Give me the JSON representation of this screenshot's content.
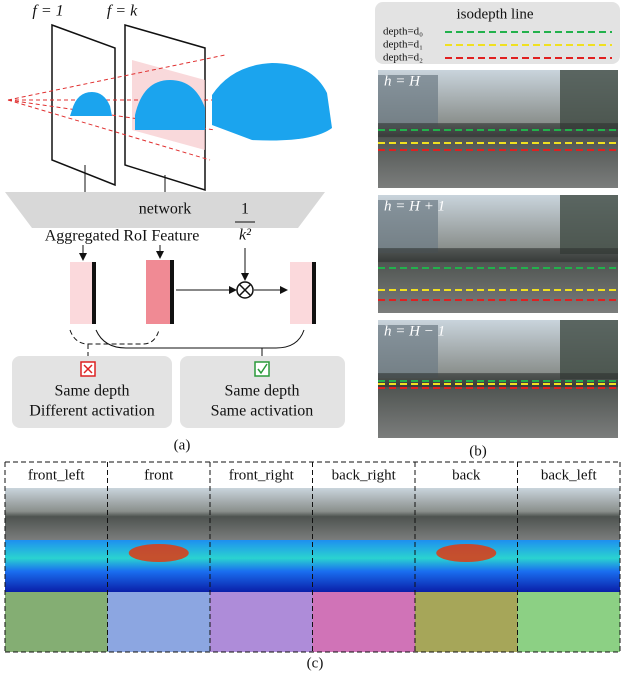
{
  "panel_a": {
    "planes": [
      "f = 1",
      "f = k"
    ],
    "network": "network",
    "feature_label": "Aggregated RoI Feature",
    "scale": {
      "numerator": "1",
      "denominator": "k²"
    },
    "cases": [
      {
        "lines": [
          "Same depth",
          "Different activation"
        ]
      },
      {
        "lines": [
          "Same depth",
          "Same activation"
        ]
      }
    ],
    "caption": "(a)"
  },
  "panel_b": {
    "legend": {
      "title": "isodepth line",
      "entries": [
        "depth=d₀",
        "depth=d₁",
        "depth=d₂"
      ]
    },
    "views": [
      "h = H",
      "h = H + 1",
      "h = H − 1"
    ],
    "caption": "(b)"
  },
  "panel_c": {
    "cameras": [
      "front_left",
      "front",
      "front_right",
      "back_right",
      "back",
      "back_left"
    ],
    "caption": "(c)"
  }
}
